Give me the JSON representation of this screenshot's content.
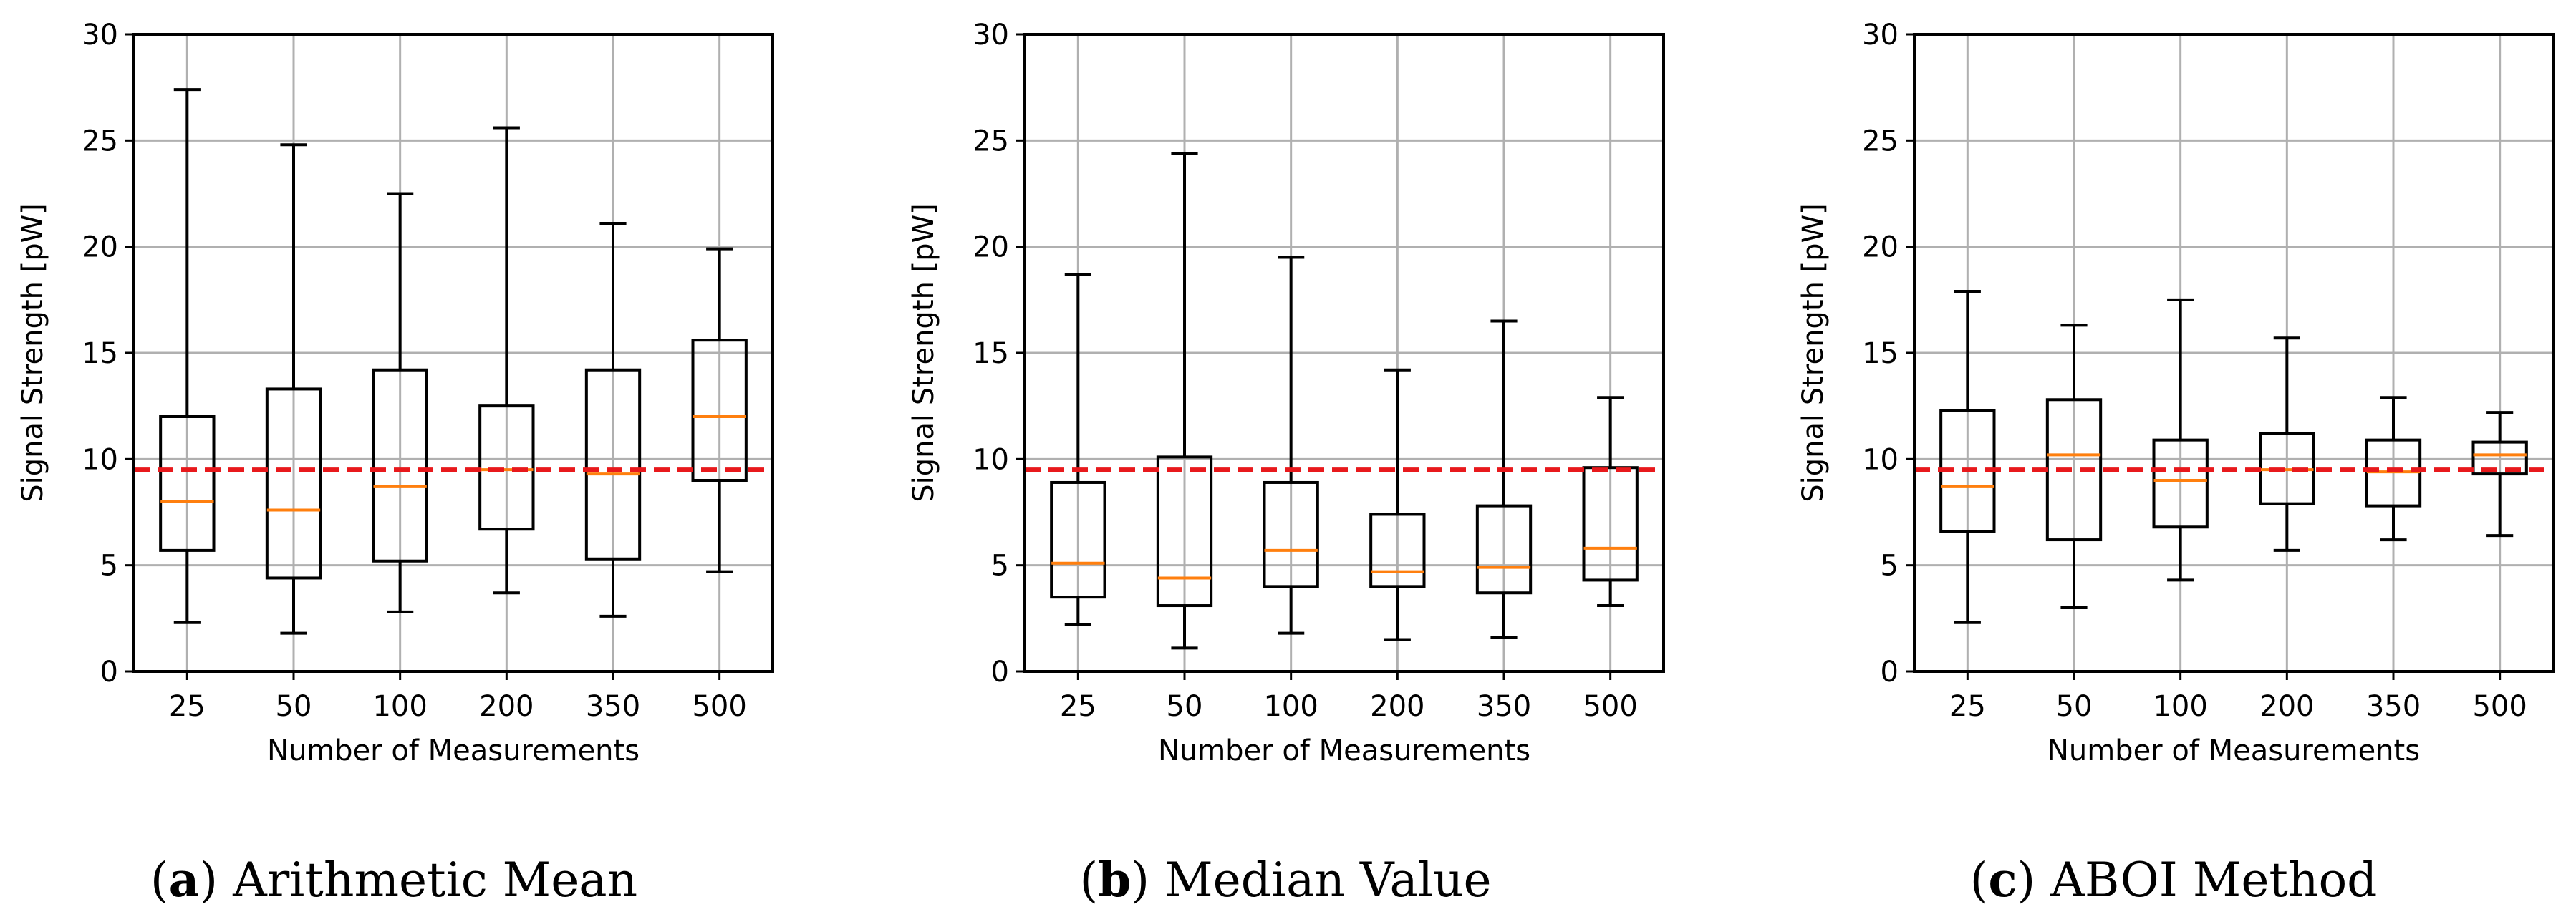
{
  "chart_data": [
    {
      "type": "boxplot",
      "caption_letter": "a",
      "caption_text": "Arithmetic Mean",
      "xlabel": "Number of Measurements",
      "ylabel": "Signal Strength [pW]",
      "ylim": [
        0,
        30
      ],
      "yticks": [
        "0",
        "5",
        "10",
        "15",
        "20",
        "25",
        "30"
      ],
      "grid": true,
      "reference_line": 9.5,
      "categories": [
        "25",
        "50",
        "100",
        "200",
        "350",
        "500"
      ],
      "boxes": [
        {
          "whisker_low": 2.3,
          "q1": 5.7,
          "median": 8.0,
          "q3": 12.0,
          "whisker_high": 27.4
        },
        {
          "whisker_low": 1.8,
          "q1": 4.4,
          "median": 7.6,
          "q3": 13.3,
          "whisker_high": 24.8
        },
        {
          "whisker_low": 2.8,
          "q1": 5.2,
          "median": 8.7,
          "q3": 14.2,
          "whisker_high": 22.5
        },
        {
          "whisker_low": 3.7,
          "q1": 6.7,
          "median": 9.5,
          "q3": 12.5,
          "whisker_high": 25.6
        },
        {
          "whisker_low": 2.6,
          "q1": 5.3,
          "median": 9.3,
          "q3": 14.2,
          "whisker_high": 21.1
        },
        {
          "whisker_low": 4.7,
          "q1": 9.0,
          "median": 12.0,
          "q3": 15.6,
          "whisker_high": 19.9
        }
      ]
    },
    {
      "type": "boxplot",
      "caption_letter": "b",
      "caption_text": "Median Value",
      "xlabel": "Number of Measurements",
      "ylabel": "Signal Strength [pW]",
      "ylim": [
        0,
        30
      ],
      "yticks": [
        "0",
        "5",
        "10",
        "15",
        "20",
        "25",
        "30"
      ],
      "grid": true,
      "reference_line": 9.5,
      "categories": [
        "25",
        "50",
        "100",
        "200",
        "350",
        "500"
      ],
      "boxes": [
        {
          "whisker_low": 2.2,
          "q1": 3.5,
          "median": 5.1,
          "q3": 8.9,
          "whisker_high": 18.7
        },
        {
          "whisker_low": 1.1,
          "q1": 3.1,
          "median": 4.4,
          "q3": 10.1,
          "whisker_high": 24.4
        },
        {
          "whisker_low": 1.8,
          "q1": 4.0,
          "median": 5.7,
          "q3": 8.9,
          "whisker_high": 19.5
        },
        {
          "whisker_low": 1.5,
          "q1": 4.0,
          "median": 4.7,
          "q3": 7.4,
          "whisker_high": 14.2
        },
        {
          "whisker_low": 1.6,
          "q1": 3.7,
          "median": 4.9,
          "q3": 7.8,
          "whisker_high": 16.5
        },
        {
          "whisker_low": 3.1,
          "q1": 4.3,
          "median": 5.8,
          "q3": 9.6,
          "whisker_high": 12.9
        }
      ]
    },
    {
      "type": "boxplot",
      "caption_letter": "c",
      "caption_text": "ABOI Method",
      "xlabel": "Number of Measurements",
      "ylabel": "Signal Strength [pW]",
      "ylim": [
        0,
        30
      ],
      "yticks": [
        "0",
        "5",
        "10",
        "15",
        "20",
        "25",
        "30"
      ],
      "grid": true,
      "reference_line": 9.5,
      "categories": [
        "25",
        "50",
        "100",
        "200",
        "350",
        "500"
      ],
      "boxes": [
        {
          "whisker_low": 2.3,
          "q1": 6.6,
          "median": 8.7,
          "q3": 12.3,
          "whisker_high": 17.9
        },
        {
          "whisker_low": 3.0,
          "q1": 6.2,
          "median": 10.2,
          "q3": 12.8,
          "whisker_high": 16.3
        },
        {
          "whisker_low": 4.3,
          "q1": 6.8,
          "median": 9.0,
          "q3": 10.9,
          "whisker_high": 17.5
        },
        {
          "whisker_low": 5.7,
          "q1": 7.9,
          "median": 9.5,
          "q3": 11.2,
          "whisker_high": 15.7
        },
        {
          "whisker_low": 6.2,
          "q1": 7.8,
          "median": 9.4,
          "q3": 10.9,
          "whisker_high": 12.9
        },
        {
          "whisker_low": 6.4,
          "q1": 9.3,
          "median": 10.2,
          "q3": 10.8,
          "whisker_high": 12.2
        }
      ]
    }
  ],
  "colors": {
    "box": "#000000",
    "median": "#ff7f0e",
    "reference": "#e8191c",
    "grid": "#b0b0b0"
  }
}
